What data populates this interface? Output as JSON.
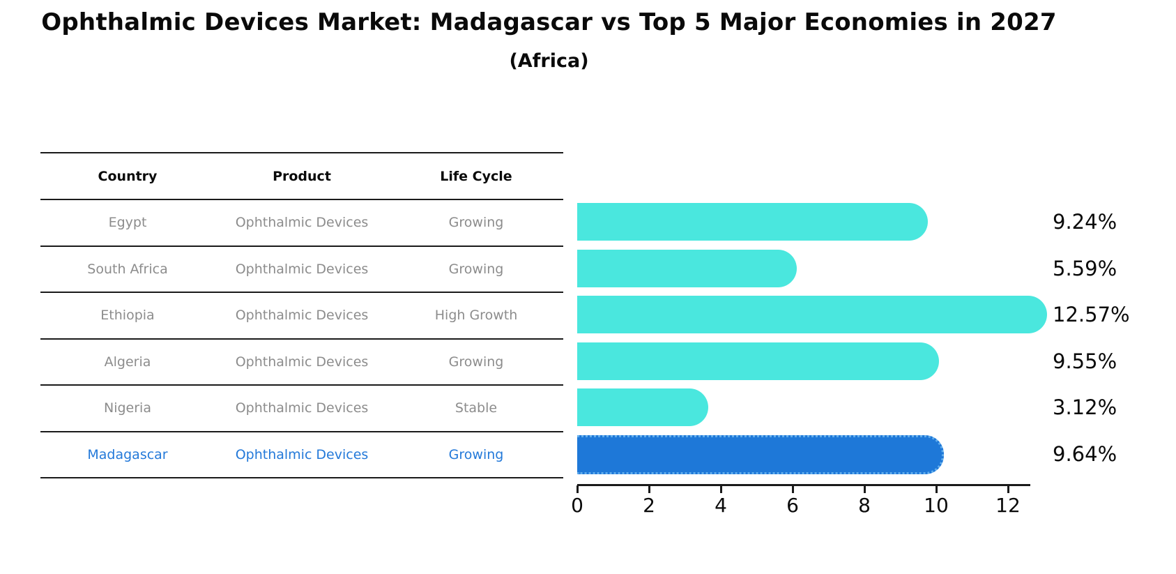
{
  "title": "Ophthalmic Devices Market: Madagascar vs Top 5 Major Economies in 2027",
  "subtitle": "(Africa)",
  "table": {
    "headers": [
      "Country",
      "Product",
      "Life Cycle"
    ],
    "rows": [
      {
        "country": "Egypt",
        "product": "Ophthalmic Devices",
        "life_cycle": "Growing",
        "value_label": "9.24%"
      },
      {
        "country": "South Africa",
        "product": "Ophthalmic Devices",
        "life_cycle": "Growing",
        "value_label": "5.59%"
      },
      {
        "country": "Ethiopia",
        "product": "Ophthalmic Devices",
        "life_cycle": "High Growth",
        "value_label": "12.57%"
      },
      {
        "country": "Algeria",
        "product": "Ophthalmic Devices",
        "life_cycle": "Growing",
        "value_label": "9.55%"
      },
      {
        "country": "Nigeria",
        "product": "Ophthalmic Devices",
        "life_cycle": "Stable",
        "value_label": "3.12%"
      },
      {
        "country": "Madagascar",
        "product": "Ophthalmic Devices",
        "life_cycle": "Growing",
        "value_label": "9.64%"
      }
    ]
  },
  "chart_data": {
    "type": "bar",
    "orientation": "horizontal",
    "title": "Ophthalmic Devices Market: Madagascar vs Top 5 Major Economies in 2027 (Africa)",
    "categories": [
      "Egypt",
      "South Africa",
      "Ethiopia",
      "Algeria",
      "Nigeria",
      "Madagascar"
    ],
    "values": [
      9.24,
      5.59,
      12.57,
      9.55,
      3.12,
      9.64
    ],
    "labels": [
      "9.24%",
      "5.59%",
      "12.57%",
      "9.55%",
      "3.12%",
      "9.64%"
    ],
    "unit": "percent",
    "x_ticks": [
      "0",
      "2",
      "4",
      "6",
      "8",
      "10",
      "12"
    ],
    "xlim": [
      0,
      13
    ],
    "grid": false,
    "legend": "none",
    "bar_color": "#4AE7DE",
    "highlight_color": "#1E78D8",
    "highlight_border_color": "#62AEED",
    "highlight_category": "Madagascar",
    "highlight_index": 5
  },
  "colors": {
    "background": "#FFFFFF",
    "table_line": "#1A1A1A",
    "table_text": "#8C8C8C",
    "header_text": "#0A0A0A",
    "highlight_text": "#2379D9",
    "axis": "#1A1A1A"
  }
}
